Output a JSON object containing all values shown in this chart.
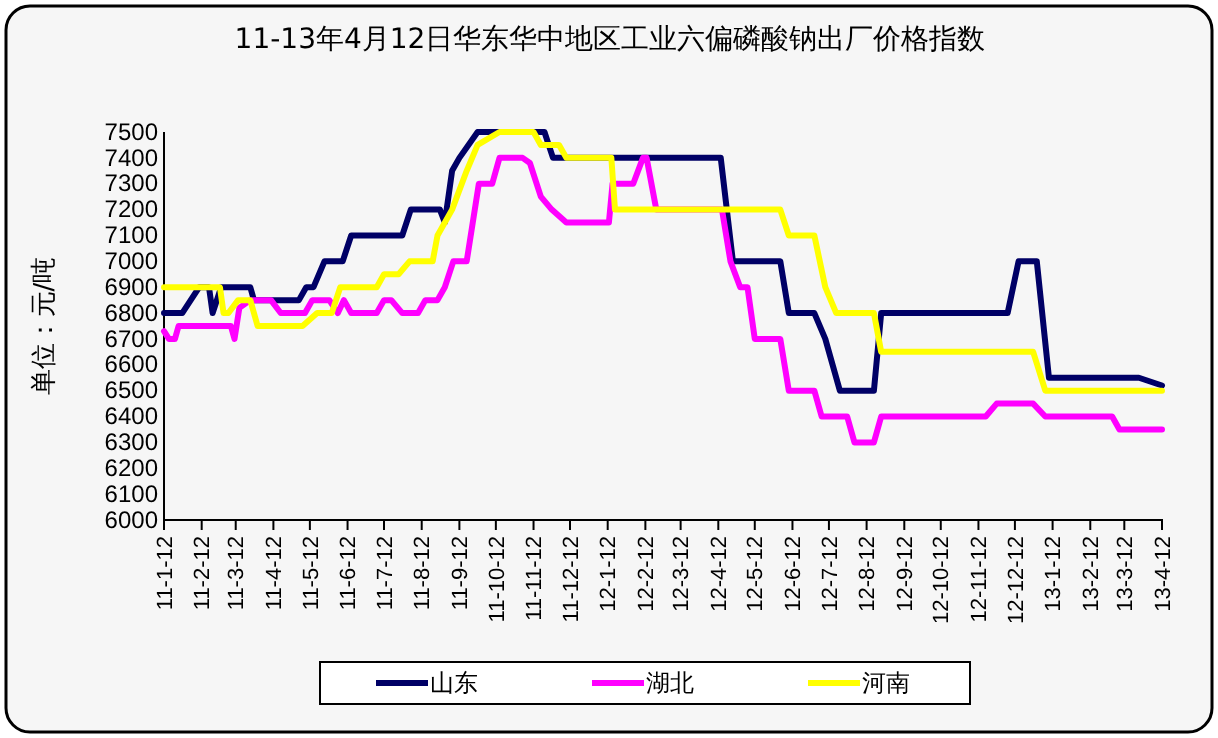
{
  "chart_data": {
    "type": "line",
    "title": "11-13年4月12日华东华中地区工业六偏磷酸钠出厂价格指数",
    "ylabel": "单位：元/吨",
    "xlim": [
      "2011-01-12",
      "2013-04-12"
    ],
    "xticks": [
      {
        "value": "2011-01-12",
        "label": "11-1-12"
      },
      {
        "value": "2011-02-12",
        "label": "11-2-12"
      },
      {
        "value": "2011-03-12",
        "label": "11-3-12"
      },
      {
        "value": "2011-04-12",
        "label": "11-4-12"
      },
      {
        "value": "2011-05-12",
        "label": "11-5-12"
      },
      {
        "value": "2011-06-12",
        "label": "11-6-12"
      },
      {
        "value": "2011-07-12",
        "label": "11-7-12"
      },
      {
        "value": "2011-08-12",
        "label": "11-8-12"
      },
      {
        "value": "2011-09-12",
        "label": "11-9-12"
      },
      {
        "value": "2011-10-12",
        "label": "11-10-12"
      },
      {
        "value": "2011-11-12",
        "label": "11-11-12"
      },
      {
        "value": "2011-12-12",
        "label": "11-12-12"
      },
      {
        "value": "2012-01-12",
        "label": "12-1-12"
      },
      {
        "value": "2012-02-12",
        "label": "12-2-12"
      },
      {
        "value": "2012-03-12",
        "label": "12-3-12"
      },
      {
        "value": "2012-04-12",
        "label": "12-4-12"
      },
      {
        "value": "2012-05-12",
        "label": "12-5-12"
      },
      {
        "value": "2012-06-12",
        "label": "12-6-12"
      },
      {
        "value": "2012-07-12",
        "label": "12-7-12"
      },
      {
        "value": "2012-08-12",
        "label": "12-8-12"
      },
      {
        "value": "2012-09-12",
        "label": "12-9-12"
      },
      {
        "value": "2012-10-12",
        "label": "12-10-12"
      },
      {
        "value": "2012-11-12",
        "label": "12-11-12"
      },
      {
        "value": "2012-12-12",
        "label": "12-12-12"
      },
      {
        "value": "2013-01-12",
        "label": "13-1-12"
      },
      {
        "value": "2013-02-12",
        "label": "13-2-12"
      },
      {
        "value": "2013-03-12",
        "label": "13-3-12"
      },
      {
        "value": "2013-04-12",
        "label": "13-4-12"
      }
    ],
    "ylim": [
      6000,
      7500
    ],
    "yticks": [
      6000,
      6100,
      6200,
      6300,
      6400,
      6500,
      6600,
      6700,
      6800,
      6900,
      7000,
      7100,
      7200,
      7300,
      7400,
      7500
    ],
    "grid": false,
    "legend": "bottom",
    "marker": "none",
    "line_style": "solid",
    "series": [
      {
        "name": "山东",
        "color": "#000066",
        "x": [
          "2011-01-12",
          "2011-01-27",
          "2011-02-10",
          "2011-02-18",
          "2011-02-21",
          "2011-02-28",
          "2011-03-24",
          "2011-03-27",
          "2011-05-03",
          "2011-05-09",
          "2011-05-15",
          "2011-05-24",
          "2011-06-08",
          "2011-06-15",
          "2011-07-27",
          "2011-08-03",
          "2011-08-27",
          "2011-08-31",
          "2011-09-06",
          "2011-09-12",
          "2011-09-27",
          "2011-11-21",
          "2011-11-28",
          "2012-04-14",
          "2012-04-24",
          "2012-06-02",
          "2012-06-09",
          "2012-06-30",
          "2012-07-09",
          "2012-07-21",
          "2012-08-18",
          "2012-08-24",
          "2012-12-06",
          "2012-12-15",
          "2012-12-30",
          "2013-01-09",
          "2013-03-24",
          "2013-04-12"
        ],
        "values": [
          6800,
          6800,
          6900,
          6900,
          6800,
          6900,
          6900,
          6850,
          6850,
          6900,
          6900,
          7000,
          7000,
          7100,
          7100,
          7200,
          7200,
          7150,
          7350,
          7400,
          7500,
          7500,
          7400,
          7400,
          7000,
          7000,
          6800,
          6800,
          6700,
          6500,
          6500,
          6800,
          6800,
          7000,
          7000,
          6550,
          6550,
          6520
        ]
      },
      {
        "name": "湖北",
        "color": "#ff00ff",
        "x": [
          "2011-01-12",
          "2011-01-16",
          "2011-01-21",
          "2011-01-24",
          "2011-03-08",
          "2011-03-11",
          "2011-03-15",
          "2011-03-24",
          "2011-04-10",
          "2011-04-18",
          "2011-05-08",
          "2011-05-14",
          "2011-05-28",
          "2011-06-04",
          "2011-06-09",
          "2011-06-15",
          "2011-07-06",
          "2011-07-12",
          "2011-07-18",
          "2011-07-27",
          "2011-08-09",
          "2011-08-15",
          "2011-08-25",
          "2011-08-31",
          "2011-09-07",
          "2011-09-18",
          "2011-09-28",
          "2011-10-09",
          "2011-10-15",
          "2011-11-03",
          "2011-11-09",
          "2011-11-18",
          "2011-11-27",
          "2011-12-09",
          "2012-01-13",
          "2012-01-16",
          "2012-02-02",
          "2012-02-10",
          "2012-02-13",
          "2012-02-21",
          "2012-04-15",
          "2012-04-22",
          "2012-04-30",
          "2012-05-06",
          "2012-05-12",
          "2012-06-02",
          "2012-06-09",
          "2012-06-30",
          "2012-07-06",
          "2012-07-27",
          "2012-08-02",
          "2012-08-18",
          "2012-08-24",
          "2012-11-18",
          "2012-11-27",
          "2012-12-27",
          "2013-01-06",
          "2013-03-02",
          "2013-03-08",
          "2013-04-12"
        ],
        "values": [
          6730,
          6700,
          6700,
          6750,
          6750,
          6700,
          6820,
          6850,
          6850,
          6800,
          6800,
          6850,
          6850,
          6800,
          6850,
          6800,
          6800,
          6850,
          6850,
          6800,
          6800,
          6850,
          6850,
          6900,
          7000,
          7000,
          7300,
          7300,
          7400,
          7400,
          7380,
          7250,
          7200,
          7150,
          7150,
          7300,
          7300,
          7400,
          7400,
          7200,
          7200,
          7000,
          6900,
          6900,
          6700,
          6700,
          6500,
          6500,
          6400,
          6400,
          6300,
          6300,
          6400,
          6400,
          6450,
          6450,
          6400,
          6400,
          6350,
          6350
        ]
      },
      {
        "name": "河南",
        "color": "#ffff00",
        "x": [
          "2011-01-12",
          "2011-02-27",
          "2011-03-02",
          "2011-03-06",
          "2011-03-14",
          "2011-03-24",
          "2011-03-30",
          "2011-05-06",
          "2011-05-18",
          "2011-05-30",
          "2011-06-06",
          "2011-07-06",
          "2011-07-12",
          "2011-07-24",
          "2011-08-02",
          "2011-08-21",
          "2011-08-25",
          "2011-09-06",
          "2011-09-18",
          "2011-09-27",
          "2011-10-15",
          "2011-11-12",
          "2011-11-18",
          "2011-12-03",
          "2011-12-09",
          "2012-01-15",
          "2012-01-18",
          "2012-06-02",
          "2012-06-09",
          "2012-06-30",
          "2012-07-09",
          "2012-07-18",
          "2012-08-18",
          "2012-08-24",
          "2012-12-27",
          "2013-01-06",
          "2013-04-12"
        ],
        "values": [
          6900,
          6900,
          6800,
          6800,
          6850,
          6850,
          6750,
          6750,
          6800,
          6800,
          6900,
          6900,
          6950,
          6950,
          7000,
          7000,
          7100,
          7200,
          7350,
          7450,
          7500,
          7500,
          7450,
          7450,
          7400,
          7400,
          7200,
          7200,
          7100,
          7100,
          6900,
          6800,
          6800,
          6650,
          6650,
          6500,
          6500
        ]
      }
    ]
  }
}
